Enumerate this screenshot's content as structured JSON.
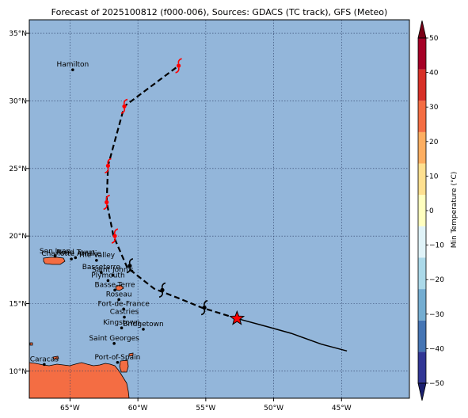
{
  "title": "Forecast of 2025100812 (f000-006), Sources: GDACS (TC track), GFS (Meteo)",
  "map": {
    "lon_range": [
      -68,
      -40
    ],
    "lat_range": [
      8,
      36
    ],
    "lon_ticks": [
      {
        "value": -65,
        "label": "65°W"
      },
      {
        "value": -60,
        "label": "60°W"
      },
      {
        "value": -55,
        "label": "55°W"
      },
      {
        "value": -50,
        "label": "50°W"
      },
      {
        "value": -45,
        "label": "45°W"
      }
    ],
    "lat_ticks": [
      {
        "value": 10,
        "label": "10°N"
      },
      {
        "value": 15,
        "label": "15°N"
      },
      {
        "value": 20,
        "label": "20°N"
      },
      {
        "value": 25,
        "label": "25°N"
      },
      {
        "value": 30,
        "label": "30°N"
      },
      {
        "value": 35,
        "label": "35°N"
      }
    ],
    "ocean_color": "#93b6da",
    "land_color": "#f46d43",
    "grid": true
  },
  "cities": [
    {
      "name": "Hamilton",
      "lon": -64.8,
      "lat": 32.3
    },
    {
      "name": "San Juan",
      "lon": -66.1,
      "lat": 18.5
    },
    {
      "name": "Road Town",
      "lon": -64.6,
      "lat": 18.4
    },
    {
      "name": "Charlotte Amalie",
      "lon": -64.9,
      "lat": 18.3
    },
    {
      "name": "The Valley",
      "lon": -63.05,
      "lat": 18.2
    },
    {
      "name": "Basseterre",
      "lon": -62.7,
      "lat": 17.3
    },
    {
      "name": "Saint John's",
      "lon": -61.85,
      "lat": 17.1
    },
    {
      "name": "Plymouth",
      "lon": -62.2,
      "lat": 16.7
    },
    {
      "name": "Basse-Terre",
      "lon": -61.7,
      "lat": 16.0
    },
    {
      "name": "Roseau",
      "lon": -61.4,
      "lat": 15.3
    },
    {
      "name": "Fort-de-France",
      "lon": -61.05,
      "lat": 14.6
    },
    {
      "name": "Castries",
      "lon": -61.0,
      "lat": 14.0
    },
    {
      "name": "Kingstown",
      "lon": -61.2,
      "lat": 13.2
    },
    {
      "name": "Bridgetown",
      "lon": -59.6,
      "lat": 13.1
    },
    {
      "name": "Saint Georges",
      "lon": -61.75,
      "lat": 12.05
    },
    {
      "name": "Port-of-Spain",
      "lon": -61.5,
      "lat": 10.65
    },
    {
      "name": "Caracas",
      "lon": -66.9,
      "lat": 10.5
    }
  ],
  "track": {
    "observed": [
      {
        "lon": -44.6,
        "lat": 11.5
      },
      {
        "lon": -46.5,
        "lat": 12.0
      },
      {
        "lon": -48.7,
        "lat": 12.8
      },
      {
        "lon": -50.5,
        "lat": 13.3
      },
      {
        "lon": -52.7,
        "lat": 13.9
      }
    ],
    "forecast": [
      {
        "lon": -52.7,
        "lat": 13.9
      },
      {
        "lon": -55.3,
        "lat": 14.7
      },
      {
        "lon": -57.0,
        "lat": 15.4
      },
      {
        "lon": -58.8,
        "lat": 16.1
      },
      {
        "lon": -60.2,
        "lat": 17.2
      },
      {
        "lon": -60.8,
        "lat": 17.7
      },
      {
        "lon": -61.8,
        "lat": 20.0
      },
      {
        "lon": -62.3,
        "lat": 22.5
      },
      {
        "lon": -62.2,
        "lat": 25.2
      },
      {
        "lon": -61.0,
        "lat": 29.6
      },
      {
        "lon": -57.0,
        "lat": 32.6
      }
    ],
    "current_position": {
      "lon": -52.7,
      "lat": 13.9
    },
    "symbols": [
      {
        "lon": -55.1,
        "lat": 14.7,
        "color": "#000000"
      },
      {
        "lon": -58.2,
        "lat": 16.0,
        "color": "#000000"
      },
      {
        "lon": -60.6,
        "lat": 17.8,
        "color": "#000000"
      },
      {
        "lon": -61.7,
        "lat": 20.0,
        "color": "#ff0000"
      },
      {
        "lon": -62.3,
        "lat": 22.5,
        "color": "#ff0000"
      },
      {
        "lon": -62.2,
        "lat": 25.2,
        "color": "#ff0000"
      },
      {
        "lon": -61.0,
        "lat": 29.6,
        "color": "#ff0000"
      },
      {
        "lon": -57.0,
        "lat": 32.6,
        "color": "#ff0000"
      }
    ]
  },
  "colorbar": {
    "label": "Min Temperature (°C)",
    "min": -50,
    "max": 50,
    "ticks": [
      -50,
      -40,
      -30,
      -20,
      -10,
      0,
      10,
      20,
      30,
      40,
      50
    ],
    "tick_labels": [
      "−50",
      "−40",
      "−30",
      "−20",
      "−10",
      "0",
      "10",
      "20",
      "30",
      "40",
      "50"
    ],
    "colors": [
      "#313695",
      "#4575b4",
      "#74add1",
      "#abd9e9",
      "#e0f3f8",
      "#ffffbf",
      "#fee090",
      "#fdae61",
      "#f46d43",
      "#d73027",
      "#a50026"
    ],
    "under_color": "#1a1f6e",
    "over_color": "#7a0016"
  }
}
